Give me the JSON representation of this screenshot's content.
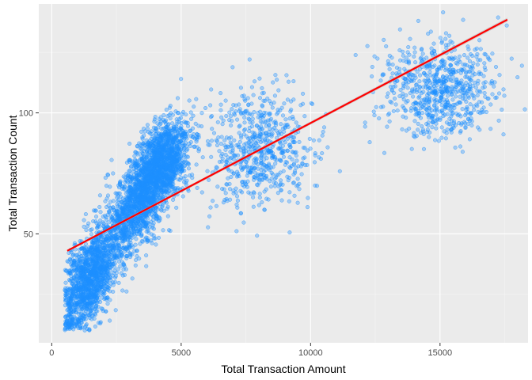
{
  "chart_data": {
    "type": "scatter",
    "title": "",
    "xlabel": "Total Transaction Amount",
    "ylabel": "Total Transaction Count",
    "xlim": [
      -500,
      18400
    ],
    "ylim": [
      5,
      145
    ],
    "x_ticks": [
      0,
      5000,
      10000,
      15000
    ],
    "x_tick_labels": [
      "0",
      "5000",
      "10000",
      "15000"
    ],
    "y_ticks": [
      50,
      100
    ],
    "y_tick_labels": [
      "50",
      "100"
    ],
    "x_minor_ticks": [
      2500,
      7500,
      12500,
      17500
    ],
    "y_minor_ticks": [
      25,
      75,
      125
    ],
    "grid": true,
    "legend": "none",
    "point_color": "#1E90FF",
    "point_alpha": 0.35,
    "series": [
      {
        "kind": "points",
        "values": [],
        "clusters": [
          {
            "x_center": 1500,
            "y_center": 32,
            "x_spread": 550,
            "y_spread": 9,
            "n": 1400,
            "trend_slope": 0.011
          },
          {
            "x_center": 3300,
            "y_center": 62,
            "x_spread": 650,
            "y_spread": 9,
            "n": 1300,
            "trend_slope": 0.01
          },
          {
            "x_center": 4300,
            "y_center": 80,
            "x_spread": 500,
            "y_spread": 8,
            "n": 1300,
            "trend_slope": 0.006
          },
          {
            "x_center": 8000,
            "y_center": 85,
            "x_spread": 1000,
            "y_spread": 12,
            "n": 650,
            "trend_slope": 0
          },
          {
            "x_center": 15000,
            "y_center": 110,
            "x_spread": 1100,
            "y_spread": 10,
            "n": 720,
            "trend_slope": 0
          }
        ]
      },
      {
        "kind": "trend-line",
        "color": "#FF0000",
        "band_color": "#BEBEBE",
        "x": [
          600,
          17600
        ],
        "y": [
          43,
          138.5
        ]
      }
    ]
  }
}
